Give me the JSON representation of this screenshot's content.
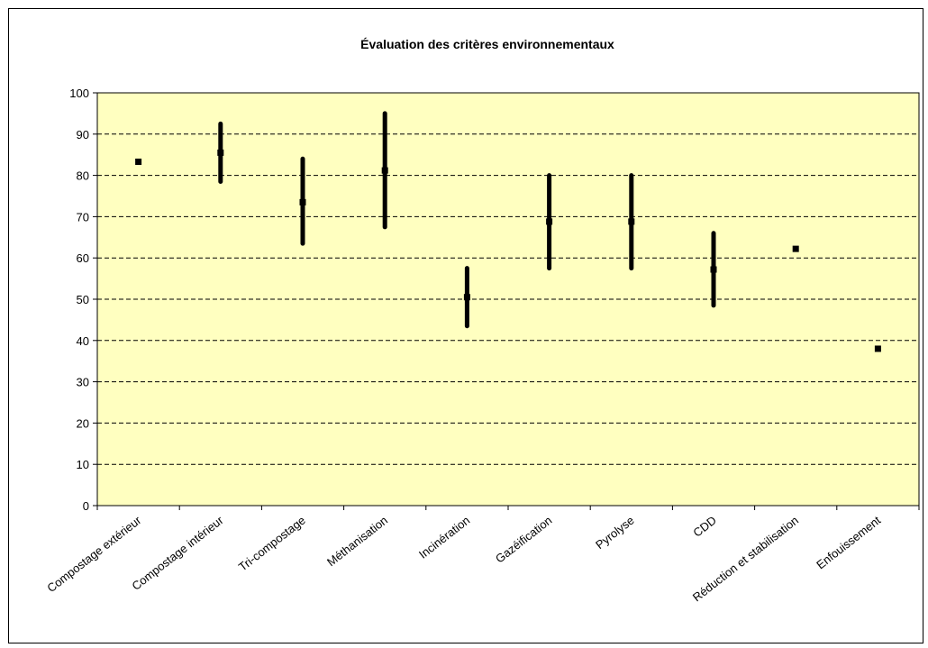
{
  "colors": {
    "plot_background": "#FFFFC0",
    "frame": "#000000",
    "bars": "#000000",
    "grid": "#000000"
  },
  "chart_data": {
    "type": "range",
    "title": "Évaluation des critères environnementaux",
    "xlabel": "",
    "ylabel": "",
    "ylim": [
      0,
      100
    ],
    "y_ticks": [
      0,
      10,
      20,
      30,
      40,
      50,
      60,
      70,
      80,
      90,
      100
    ],
    "grid": {
      "horizontal": true,
      "style": "dashed"
    },
    "categories": [
      "Compostage extérieur",
      "Compostage intérieur",
      "Tri-compostage",
      "Méthanisation",
      "Incinération",
      "Gazéification",
      "Pyrolyse",
      "CDD",
      "Réduction et stabilisation",
      "Enfouissement"
    ],
    "series": [
      {
        "role": "min",
        "values": [
          83.3,
          78.5,
          63.5,
          67.5,
          43.5,
          57.5,
          57.5,
          48.5,
          62.2,
          38.0
        ]
      },
      {
        "role": "max",
        "values": [
          83.3,
          92.5,
          84.0,
          95.0,
          57.5,
          80.0,
          80.0,
          66.0,
          62.2,
          38.0
        ]
      },
      {
        "role": "mean",
        "values": [
          83.3,
          85.5,
          73.5,
          81.2,
          50.5,
          68.8,
          68.8,
          57.2,
          62.2,
          38.0
        ]
      }
    ]
  }
}
